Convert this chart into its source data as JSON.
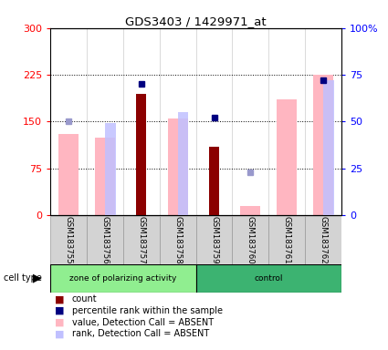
{
  "title": "GDS3403 / 1429971_at",
  "samples": [
    "GSM183755",
    "GSM183756",
    "GSM183757",
    "GSM183758",
    "GSM183759",
    "GSM183760",
    "GSM183761",
    "GSM183762"
  ],
  "value_absent": [
    130,
    125,
    null,
    155,
    null,
    15,
    185,
    225
  ],
  "rank_absent_pct": [
    null,
    49,
    null,
    55,
    null,
    null,
    null,
    72
  ],
  "count": [
    null,
    null,
    195,
    null,
    110,
    null,
    null,
    null
  ],
  "percentile_rank_pct": [
    50,
    null,
    70,
    null,
    52,
    23,
    null,
    72
  ],
  "percentile_present": [
    false,
    false,
    true,
    false,
    true,
    false,
    false,
    true
  ],
  "ylim_left": [
    0,
    300
  ],
  "ylim_right": [
    0,
    100
  ],
  "yticks_left": [
    0,
    75,
    150,
    225,
    300
  ],
  "yticks_right": [
    0,
    25,
    50,
    75,
    100
  ],
  "ytick_labels_left": [
    "0",
    "75",
    "150",
    "225",
    "300"
  ],
  "ytick_labels_right": [
    "0",
    "25",
    "50",
    "75",
    "100%"
  ],
  "color_value_absent": "#FFB6C1",
  "color_rank_absent": "#C0C0FF",
  "color_count": "#8B0000",
  "color_percentile_present": "#000080",
  "color_percentile_absent": "#9999CC",
  "legend_items": [
    {
      "label": "count",
      "color": "#8B0000"
    },
    {
      "label": "percentile rank within the sample",
      "color": "#000080"
    },
    {
      "label": "value, Detection Call = ABSENT",
      "color": "#FFB6C1"
    },
    {
      "label": "rank, Detection Call = ABSENT",
      "color": "#C0C0FF"
    }
  ],
  "group_boundaries": [
    0,
    4,
    8
  ],
  "group_labels": [
    "zone of polarizing activity",
    "control"
  ],
  "group_colors": [
    "#90EE90",
    "#3CB371"
  ]
}
